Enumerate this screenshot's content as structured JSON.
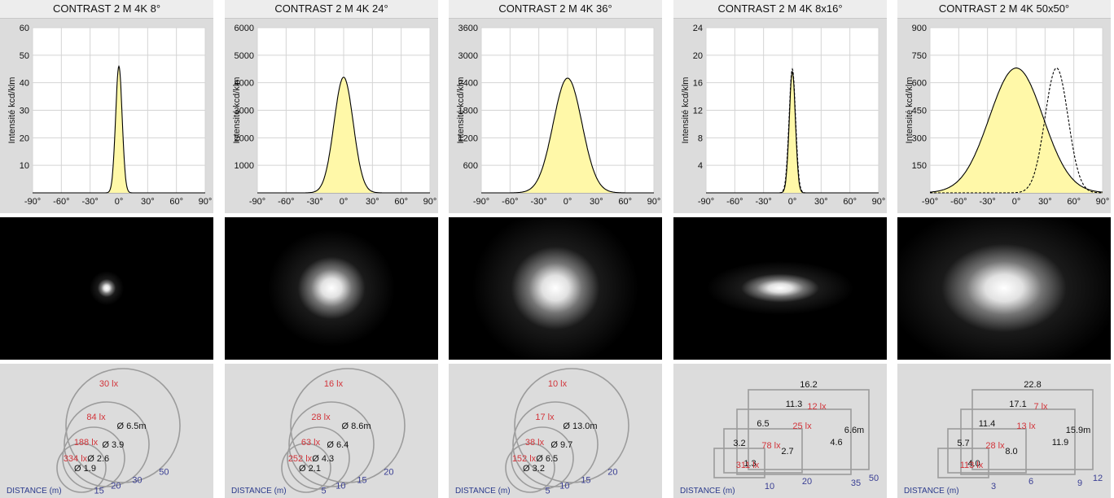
{
  "colors": {
    "fill": "#fff8a8",
    "lux": "#d2343a",
    "distance": "#3a3f94",
    "diam": "#111111",
    "shape": "#9c9c9c"
  },
  "distance_label": "DISTANCE",
  "distance_unit": "(m)",
  "chart_data": [
    {
      "type": "line",
      "title": "CONTRAST 2 M 4K 8°",
      "ylabel": "Intensité kcd/klm",
      "x_ticks": [
        "-90°",
        "-60°",
        "-30°",
        "0°",
        "30°",
        "60°",
        "90°"
      ],
      "xlim": [
        -90,
        90
      ],
      "ylim": [
        0,
        60
      ],
      "y_ticks": [
        10,
        20,
        30,
        40,
        50,
        60
      ],
      "series": [
        {
          "style": "solid",
          "filled": true,
          "peak": 46,
          "center": 0,
          "width": 3.4
        }
      ],
      "beam": {
        "rx": 7,
        "ry": 7
      },
      "distance": {
        "kind": "circles",
        "rings": [
          {
            "diam": "Ø 1.9",
            "lux": "334 lx",
            "dist": "15"
          },
          {
            "diam": "Ø 2.6",
            "lux": "188 lx",
            "dist": "20"
          },
          {
            "diam": "Ø 3.9",
            "lux": "84 lx",
            "dist": "30"
          },
          {
            "diam": "Ø 6.5m",
            "lux": "30 lx",
            "dist": "50"
          }
        ]
      }
    },
    {
      "type": "line",
      "title": "CONTRAST 2 M 4K 24°",
      "ylabel": "Intensité kcd/klm",
      "x_ticks": [
        "-90°",
        "-60°",
        "-30°",
        "0°",
        "30°",
        "60°",
        "90°"
      ],
      "xlim": [
        -90,
        90
      ],
      "ylim": [
        0,
        6000
      ],
      "y_ticks": [
        1000,
        2000,
        3000,
        4000,
        5000,
        6000
      ],
      "series": [
        {
          "style": "solid",
          "filled": true,
          "peak": 4200,
          "center": 0,
          "width": 10
        }
      ],
      "beam": {
        "rx": 26,
        "ry": 24
      },
      "distance": {
        "kind": "circles",
        "rings": [
          {
            "diam": "Ø 2.1",
            "lux": "252 lx",
            "dist": "5"
          },
          {
            "diam": "Ø 4.3",
            "lux": "63 lx",
            "dist": "10"
          },
          {
            "diam": "Ø 6.4",
            "lux": "28 lx",
            "dist": "15"
          },
          {
            "diam": "Ø 8.6m",
            "lux": "16 lx",
            "dist": "20"
          }
        ]
      }
    },
    {
      "type": "line",
      "title": "CONTRAST 2 M 4K 36°",
      "ylabel": "Intensité kcd/klm",
      "x_ticks": [
        "-90°",
        "-60°",
        "-30°",
        "0°",
        "30°",
        "60°",
        "90°"
      ],
      "xlim": [
        -90,
        90
      ],
      "ylim": [
        0,
        3600
      ],
      "y_ticks": [
        600,
        1200,
        1800,
        2400,
        3000,
        3600
      ],
      "series": [
        {
          "style": "solid",
          "filled": true,
          "peak": 2500,
          "center": 0,
          "width": 15
        }
      ],
      "beam": {
        "rx": 34,
        "ry": 32
      },
      "distance": {
        "kind": "circles",
        "rings": [
          {
            "diam": "Ø 3.2",
            "lux": "152 lx",
            "dist": "5"
          },
          {
            "diam": "Ø 6.5",
            "lux": "38 lx",
            "dist": "10"
          },
          {
            "diam": "Ø 9.7",
            "lux": "17 lx",
            "dist": "15"
          },
          {
            "diam": "Ø 13.0m",
            "lux": "10 lx",
            "dist": "20"
          }
        ]
      }
    },
    {
      "type": "line",
      "title": "CONTRAST 2 M 4K 8x16°",
      "ylabel": "Intensité kcd/klm",
      "x_ticks": [
        "-90°",
        "-60°",
        "-30°",
        "0°",
        "30°",
        "60°",
        "90°"
      ],
      "xlim": [
        -90,
        90
      ],
      "ylim": [
        0,
        24
      ],
      "y_ticks": [
        4,
        8,
        12,
        16,
        20,
        24
      ],
      "series": [
        {
          "style": "solid",
          "filled": true,
          "peak": 17.6,
          "center": 0,
          "width": 3.2
        },
        {
          "style": "dashed",
          "filled": false,
          "peak": 18,
          "center": 0,
          "width": 3.4
        }
      ],
      "beam": {
        "rx": 30,
        "ry": 11
      },
      "distance": {
        "kind": "rects",
        "rects": [
          {
            "w": "3.2",
            "h": "1.3",
            "lux": "311 lx",
            "dist": "10"
          },
          {
            "w": "6.5",
            "h": "2.7",
            "lux": "78 lx",
            "dist": "20"
          },
          {
            "w": "11.3",
            "h": "4.6",
            "lux": "25 lx",
            "dist": "35"
          },
          {
            "w": "16.2",
            "h": "6.6m",
            "lux": "12 lx",
            "dist": "50"
          }
        ]
      }
    },
    {
      "type": "line",
      "title": "CONTRAST 2 M 4K 50x50°",
      "ylabel": "Intensité kcd/klm",
      "x_ticks": [
        "-90°",
        "-60°",
        "-30°",
        "0°",
        "30°",
        "60°",
        "90°"
      ],
      "xlim": [
        -90,
        90
      ],
      "ylim": [
        0,
        900
      ],
      "y_ticks": [
        150,
        300,
        450,
        600,
        750,
        900
      ],
      "series": [
        {
          "style": "solid",
          "filled": true,
          "peak": 680,
          "center": 0,
          "width": 28
        },
        {
          "style": "dashed",
          "filled": false,
          "peak": 680,
          "center": 42,
          "width": 12
        }
      ],
      "beam": {
        "rx": 48,
        "ry": 34
      },
      "distance": {
        "kind": "rects",
        "rects": [
          {
            "w": "5.7",
            "h": "4.0",
            "lux": "113 lx",
            "dist": "3"
          },
          {
            "w": "11.4",
            "h": "8.0",
            "lux": "28 lx",
            "dist": "6"
          },
          {
            "w": "17.1",
            "h": "11.9",
            "lux": "13 lx",
            "dist": "9"
          },
          {
            "w": "22.8",
            "h": "15.9m",
            "lux": "7 lx",
            "dist": "12"
          }
        ]
      }
    }
  ]
}
